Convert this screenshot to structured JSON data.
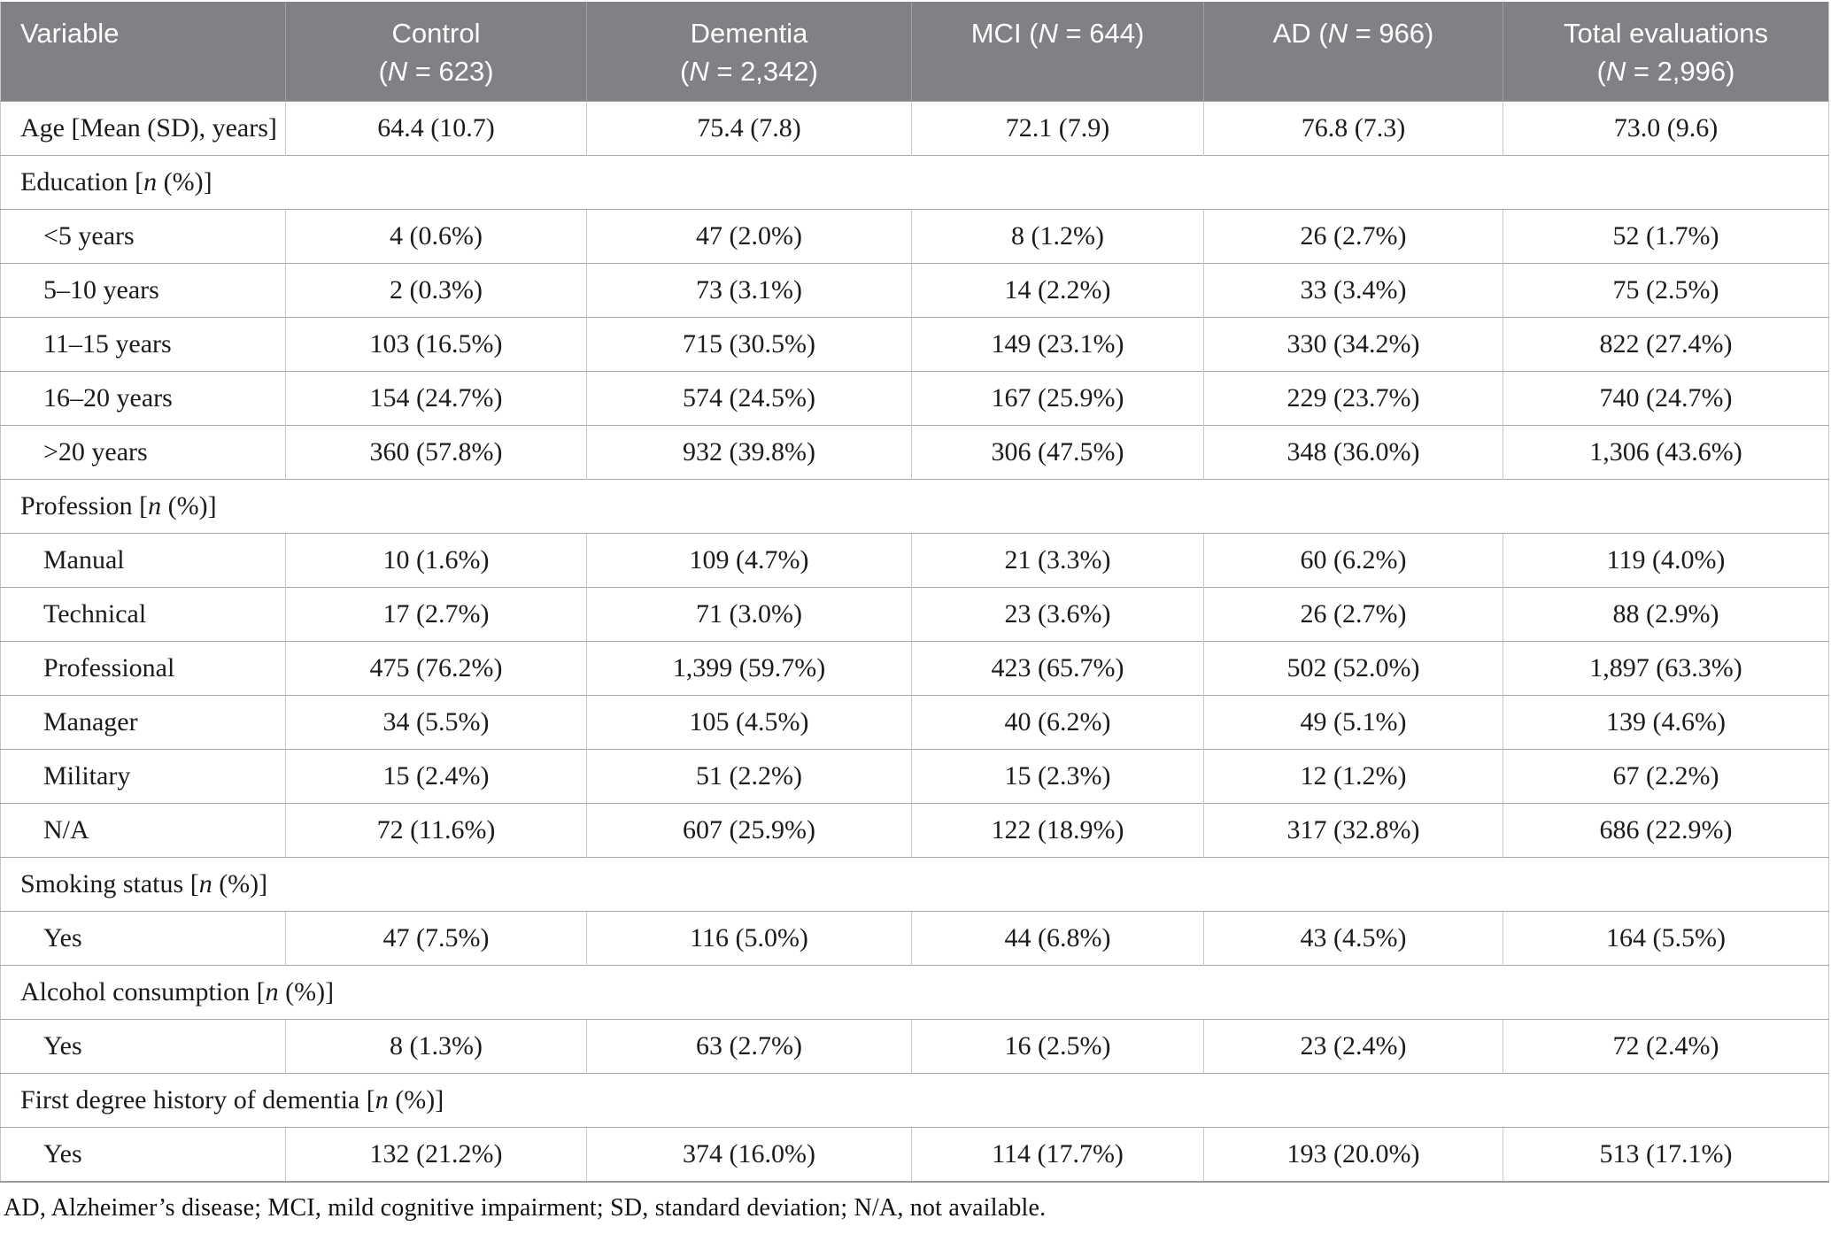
{
  "colors": {
    "header_bg": "#7f8184",
    "header_text": "#ffffff",
    "header_divider": "#9ea0a3",
    "row_line": "#a6a6a6",
    "column_line": "#c9c9c9",
    "outer_line": "#c6c6c6",
    "body_text": "#1b1b1b"
  },
  "table": {
    "columns": [
      {
        "key": "variable",
        "lines": [
          "Variable"
        ]
      },
      {
        "key": "control",
        "lines": [
          "Control",
          "(N = 623)"
        ]
      },
      {
        "key": "dementia",
        "lines": [
          "Dementia",
          "(N = 2,342)"
        ]
      },
      {
        "key": "mci",
        "lines": [
          "MCI (N = 644)"
        ]
      },
      {
        "key": "ad",
        "lines": [
          "AD (N = 966)"
        ]
      },
      {
        "key": "total",
        "lines": [
          "Total evaluations",
          "(N = 2,996)"
        ]
      }
    ],
    "rows": [
      {
        "type": "data",
        "indent": 0,
        "label": "Age [Mean (SD), years]",
        "values": [
          "64.4 (10.7)",
          "75.4 (7.8)",
          "72.1 (7.9)",
          "76.8 (7.3)",
          "73.0 (9.6)"
        ]
      },
      {
        "type": "section",
        "label": "Education [n (%)]"
      },
      {
        "type": "data",
        "indent": 1,
        "label": "<5 years",
        "values": [
          "4 (0.6%)",
          "47 (2.0%)",
          "8 (1.2%)",
          "26 (2.7%)",
          "52 (1.7%)"
        ]
      },
      {
        "type": "data",
        "indent": 1,
        "label": "5–10 years",
        "values": [
          "2 (0.3%)",
          "73 (3.1%)",
          "14 (2.2%)",
          "33 (3.4%)",
          "75 (2.5%)"
        ]
      },
      {
        "type": "data",
        "indent": 1,
        "label": "11–15 years",
        "values": [
          "103 (16.5%)",
          "715 (30.5%)",
          "149 (23.1%)",
          "330 (34.2%)",
          "822 (27.4%)"
        ]
      },
      {
        "type": "data",
        "indent": 1,
        "label": "16–20 years",
        "values": [
          "154 (24.7%)",
          "574 (24.5%)",
          "167 (25.9%)",
          "229 (23.7%)",
          "740 (24.7%)"
        ]
      },
      {
        "type": "data",
        "indent": 1,
        "label": ">20 years",
        "values": [
          "360 (57.8%)",
          "932 (39.8%)",
          "306 (47.5%)",
          "348 (36.0%)",
          "1,306 (43.6%)"
        ]
      },
      {
        "type": "section",
        "label": "Profession [n (%)]"
      },
      {
        "type": "data",
        "indent": 1,
        "label": "Manual",
        "values": [
          "10 (1.6%)",
          "109 (4.7%)",
          "21 (3.3%)",
          "60 (6.2%)",
          "119 (4.0%)"
        ]
      },
      {
        "type": "data",
        "indent": 1,
        "label": "Technical",
        "values": [
          "17 (2.7%)",
          "71 (3.0%)",
          "23 (3.6%)",
          "26 (2.7%)",
          "88 (2.9%)"
        ]
      },
      {
        "type": "data",
        "indent": 1,
        "label": "Professional",
        "values": [
          "475 (76.2%)",
          "1,399 (59.7%)",
          "423 (65.7%)",
          "502 (52.0%)",
          "1,897 (63.3%)"
        ]
      },
      {
        "type": "data",
        "indent": 1,
        "label": "Manager",
        "values": [
          "34 (5.5%)",
          "105 (4.5%)",
          "40 (6.2%)",
          "49 (5.1%)",
          "139 (4.6%)"
        ]
      },
      {
        "type": "data",
        "indent": 1,
        "label": "Military",
        "values": [
          "15 (2.4%)",
          "51 (2.2%)",
          "15 (2.3%)",
          "12 (1.2%)",
          "67 (2.2%)"
        ]
      },
      {
        "type": "data",
        "indent": 1,
        "label": "N/A",
        "values": [
          "72 (11.6%)",
          "607 (25.9%)",
          "122 (18.9%)",
          "317 (32.8%)",
          "686 (22.9%)"
        ]
      },
      {
        "type": "section",
        "label": "Smoking status [n (%)]"
      },
      {
        "type": "data",
        "indent": 1,
        "label": "Yes",
        "values": [
          "47 (7.5%)",
          "116 (5.0%)",
          "44 (6.8%)",
          "43 (4.5%)",
          "164 (5.5%)"
        ]
      },
      {
        "type": "section",
        "label": "Alcohol consumption [n (%)]"
      },
      {
        "type": "data",
        "indent": 1,
        "label": "Yes",
        "values": [
          "8 (1.3%)",
          "63 (2.7%)",
          "16 (2.5%)",
          "23 (2.4%)",
          "72 (2.4%)"
        ]
      },
      {
        "type": "section",
        "label": "First degree history of dementia [n (%)]"
      },
      {
        "type": "data",
        "indent": 1,
        "label": "Yes",
        "values": [
          "132 (21.2%)",
          "374 (16.0%)",
          "114 (17.7%)",
          "193 (20.0%)",
          "513 (17.1%)"
        ]
      }
    ]
  },
  "footnote": "AD, Alzheimer’s disease; MCI, mild cognitive impairment; SD, standard deviation; N/A, not available."
}
